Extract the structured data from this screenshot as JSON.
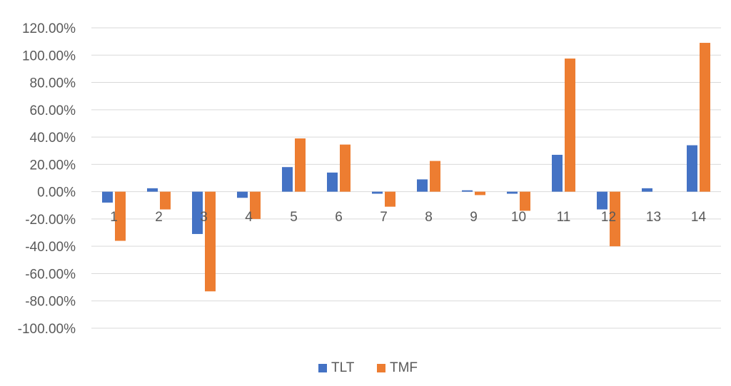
{
  "chart_data": {
    "type": "bar",
    "title": "",
    "xlabel": "",
    "ylabel": "",
    "categories": [
      "1",
      "2",
      "3",
      "4",
      "5",
      "6",
      "7",
      "8",
      "9",
      "10",
      "11",
      "12",
      "13",
      "14"
    ],
    "series": [
      {
        "name": "TLT",
        "color": "#4472c4",
        "values": [
          -8,
          2.5,
          -31,
          -4.5,
          18,
          14,
          -1.5,
          9,
          1,
          -1.5,
          27,
          -13,
          2.5,
          34
        ]
      },
      {
        "name": "TMF",
        "color": "#ed7d31",
        "values": [
          -36,
          -13,
          -73,
          -20,
          39,
          34.5,
          -11,
          22.5,
          -2.5,
          -14,
          97.5,
          -40,
          0,
          109
        ]
      }
    ],
    "ylim": [
      -100,
      120
    ],
    "yticks": [
      120,
      100,
      80,
      60,
      40,
      20,
      0,
      -20,
      -40,
      -60,
      -80,
      -100
    ],
    "ytick_labels": [
      "120.00%",
      "100.00%",
      "80.00%",
      "60.00%",
      "40.00%",
      "20.00%",
      "0.00%",
      "-20.00%",
      "-40.00%",
      "-60.00%",
      "-80.00%",
      "-100.00%"
    ],
    "grid": true,
    "legend_position": "bottom"
  }
}
